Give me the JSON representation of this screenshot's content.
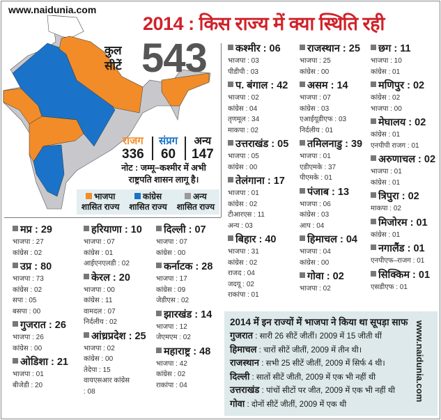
{
  "site": "www.naidunia.com",
  "title": "2014 : किस राज्य में क्या स्थिति रही",
  "total": {
    "label_line1": "कुल",
    "label_line2": "सीटें",
    "value": "543"
  },
  "alliances": [
    {
      "label": "राजग",
      "value": "336",
      "color": "#f28c28"
    },
    {
      "label": "संप्रग",
      "value": "60",
      "color": "#1a73c8"
    },
    {
      "label": "अन्य",
      "value": "147",
      "color": "#222222"
    }
  ],
  "note": "नोट : जम्मू–कश्मीर में अभी राष्ट्रपति शासन लागू है।",
  "legend": [
    {
      "name": "भाजपा",
      "sub": "शासित राज्य",
      "color": "#f28c28"
    },
    {
      "name": "कांग्रेस",
      "sub": "शासित राज्य",
      "color": "#1a73c8"
    },
    {
      "name": "अन्य",
      "sub": "शासित राज्य",
      "color": "#999999"
    }
  ],
  "columns": [
    [
      {
        "n": "कश्मीर",
        "t": "06",
        "p": [
          "भाजपा : 03",
          "पीडीपी : 03"
        ]
      },
      {
        "n": "प. बंगाल",
        "t": "42",
        "p": [
          "भाजपा : 02",
          "कांग्रेस : 04",
          "तृणमूल : 34",
          "माकपा : 02"
        ]
      },
      {
        "n": "उत्तराखंड",
        "t": "05",
        "p": [
          "भाजपा : 05",
          "कांग्रेस : 00"
        ]
      },
      {
        "n": "तेलंगाना",
        "t": "17",
        "p": [
          "भाजपा : 01",
          "कांग्रेस : 02",
          "टीआरएस : 11",
          "अन्य : 03"
        ]
      },
      {
        "n": "बिहार",
        "t": "40",
        "p": [
          "भाजपा : 31",
          "कांग्रेस : 02",
          "राजद : 04",
          "जदयू : 02",
          "राकांपा : 01"
        ]
      }
    ],
    [
      {
        "n": "राजस्थान",
        "t": "25",
        "p": [
          "भाजपा : 25",
          "कांग्रेस : 00"
        ]
      },
      {
        "n": "असम",
        "t": "14",
        "p": [
          "भाजपा : 07",
          "कांग्रेस : 03",
          "एआईयूडीएफ : 03",
          "निर्दलीय : 01"
        ]
      },
      {
        "n": "तमिलनाडु",
        "t": "39",
        "p": [
          "भाजपा : 01",
          "एडीएमके : 37",
          "पीएमके : 01"
        ]
      },
      {
        "n": "पंजाब",
        "t": "13",
        "p": [
          "भाजपा : 06",
          "कांग्रेस : 03",
          "आप : 04"
        ]
      },
      {
        "n": "हिमाचल",
        "t": "04",
        "p": [
          "भाजपा : 04",
          "कांग्रेस : 00"
        ]
      },
      {
        "n": "गोवा",
        "t": "02",
        "p": [
          "भाजपा : 02"
        ]
      }
    ],
    [
      {
        "n": "छग",
        "t": "11",
        "p": [
          "भाजपा : 10",
          "कांग्रेस : 01"
        ]
      },
      {
        "n": "मणिपुर",
        "t": "02",
        "p": [
          "कांग्रेस : 02",
          "भाजपा : 00"
        ]
      },
      {
        "n": "मेघालय",
        "t": "02",
        "p": [
          "कांग्रेस : 01",
          "एनपीपी राजग : 01"
        ]
      },
      {
        "n": "अरुणाचल",
        "t": "02",
        "p": [
          "भाजपा : 01",
          "कांग्रेस : 01"
        ]
      },
      {
        "n": "त्रिपुरा",
        "t": "02",
        "p": [
          "माकपा : 02"
        ]
      },
      {
        "n": "मिजोरम",
        "t": "01",
        "p": [
          "कांग्रेस : 01"
        ]
      },
      {
        "n": "नगालैंड",
        "t": "01",
        "p": [
          "एनपीएफ–राजग : 01"
        ]
      },
      {
        "n": "सिक्किम",
        "t": "01",
        "p": [
          "एसडीएफ : 01"
        ]
      }
    ],
    [
      {
        "n": "मप्र",
        "t": "29",
        "p": [
          "भाजपा : 27",
          "कांग्रेस : 02"
        ]
      },
      {
        "n": "उप्र",
        "t": "80",
        "p": [
          "भाजपा : 73",
          "कांग्रेस : 02",
          "सपा : 05",
          "बसपा : 00"
        ]
      },
      {
        "n": "गुजरात",
        "t": "26",
        "p": [
          "भाजपा : 26",
          "कांग्रेस : 00"
        ]
      },
      {
        "n": "ओडिशा",
        "t": "21",
        "p": [
          "भाजपा : 01",
          "बीजेडी : 20"
        ]
      }
    ],
    [
      {
        "n": "हरियाणा",
        "t": "10",
        "p": [
          "भाजपा : 07",
          "कांग्रेस : 01",
          "आईएनएलडी : 02"
        ]
      },
      {
        "n": "केरल",
        "t": "20",
        "p": [
          "भाजपा : 00",
          "कांग्रेस : 11",
          "वामदल : 07",
          "निर्दलीय : 02"
        ]
      },
      {
        "n": "आंध्रप्रदेश",
        "t": "25",
        "p": [
          "भाजपा : 02",
          "कांग्रेस : 00",
          "तेदेपा : 15",
          "वायएसआर कांग्रेस",
          ": 08"
        ]
      }
    ],
    [
      {
        "n": "दिल्ली",
        "t": "07",
        "p": [
          "भाजपा : 07",
          "कांग्रेस : 00"
        ]
      },
      {
        "n": "कर्नाटक",
        "t": "28",
        "p": [
          "भाजपा : 17",
          "कांग्रेस : 09",
          "जेडीएस : 02"
        ]
      },
      {
        "n": "झारखंड",
        "t": "14",
        "p": [
          "भाजपा : 12",
          "जेएमएम : 02"
        ]
      },
      {
        "n": "महाराष्ट्र",
        "t": "48",
        "p": [
          "भाजपा : 42",
          "कांग्रेस : 02",
          "राकांपा : 04"
        ]
      }
    ]
  ],
  "sweep": {
    "title": "2014 में इन राज्यों में भाजपा ने  किया था सूपड़ा साफ",
    "items": [
      {
        "s": "गुजरात",
        "d": " : सारी 26 सीटें जीतीं। 2009 में 15 जीती थीं"
      },
      {
        "s": "हिमाचल",
        "d": " : चारों सीटें जीतीं, 2009 में तीन थी।"
      },
      {
        "s": "राजस्थान",
        "d": " : सभी 25 सीटें जीतीं, 2009 में सिर्फ 4 थी।"
      },
      {
        "s": "दिल्ली",
        "d": " : सातों सीटें जीती, 2009 में एक भी नहीं थी"
      },
      {
        "s": "उत्तराखंड",
        "d": " : पांचों सीटों पर जीत, 2009 में एक भी नहीं थी"
      },
      {
        "s": "गोवा",
        "d": " : दोनों सीटें जीतीं,  2009 में एक थी"
      }
    ]
  }
}
